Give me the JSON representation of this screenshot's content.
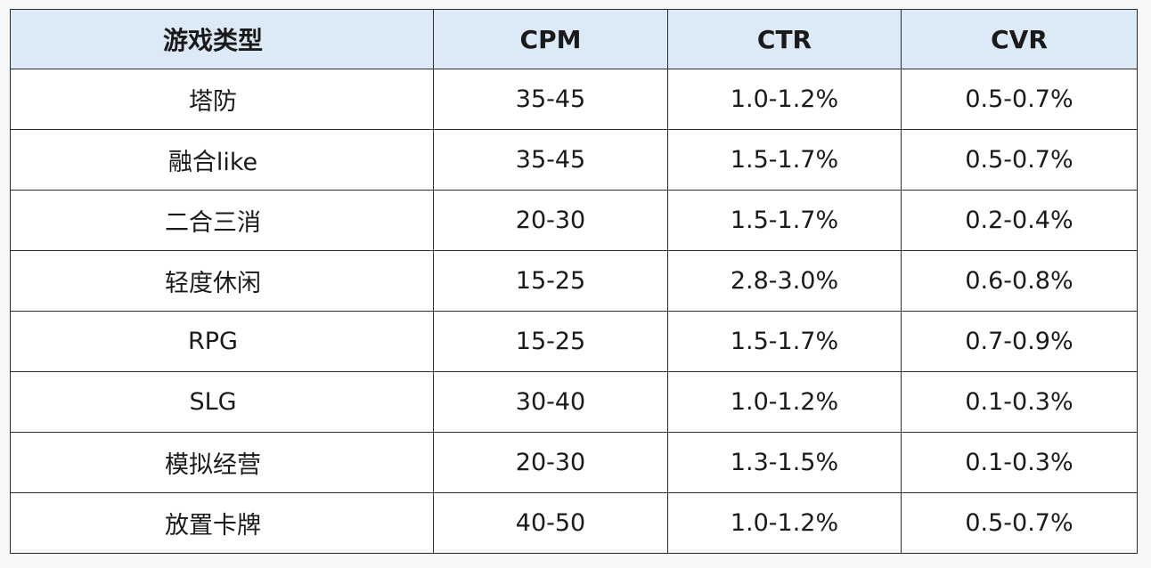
{
  "table": {
    "headers": [
      "游戏类型",
      "CPM",
      "CTR",
      "CVR"
    ],
    "rows": [
      [
        "塔防",
        "35-45",
        "1.0-1.2%",
        "0.5-0.7%"
      ],
      [
        "融合like",
        "35-45",
        "1.5-1.7%",
        "0.5-0.7%"
      ],
      [
        "二合三消",
        "20-30",
        "1.5-1.7%",
        "0.2-0.4%"
      ],
      [
        "轻度休闲",
        "15-25",
        "2.8-3.0%",
        "0.6-0.8%"
      ],
      [
        "RPG",
        "15-25",
        "1.5-1.7%",
        "0.7-0.9%"
      ],
      [
        "SLG",
        "30-40",
        "1.0-1.2%",
        "0.1-0.3%"
      ],
      [
        "模拟经营",
        "20-30",
        "1.3-1.5%",
        "0.1-0.3%"
      ],
      [
        "放置卡牌",
        "40-50",
        "1.0-1.2%",
        "0.5-0.7%"
      ]
    ]
  },
  "colors": {
    "header_bg": "#dce9f7",
    "border": "#2b2b2b",
    "text": "#1a1a1a"
  }
}
